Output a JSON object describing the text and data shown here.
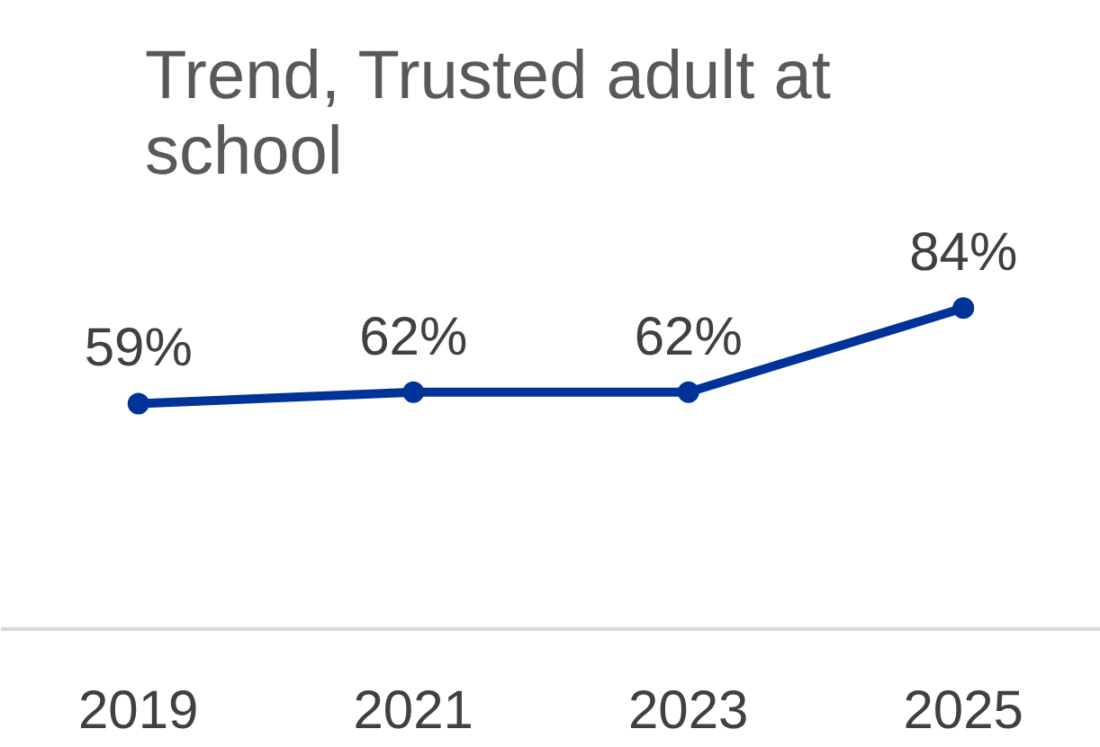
{
  "chart_data": {
    "type": "line",
    "title": "Trend, Trusted adult at school",
    "categories": [
      "2019",
      "2021",
      "2023",
      "2025"
    ],
    "series": [
      {
        "color": "#003399",
        "values": [
          59,
          62,
          62,
          84
        ],
        "value_labels": [
          "59%",
          "62%",
          "62%",
          "84%"
        ]
      }
    ],
    "marker": "circle",
    "line_style": "solid",
    "tick_labels": "x"
  }
}
